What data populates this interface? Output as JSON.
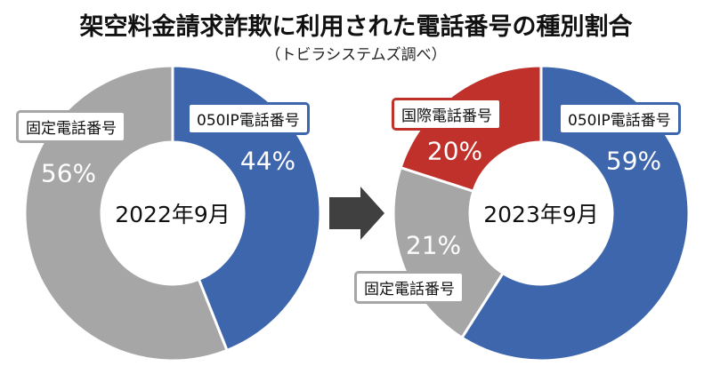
{
  "title": "架空料金請求詐欺に利用された電話番号の種別割合",
  "subtitle": "（トビラシステムズ調べ）",
  "colors": {
    "ip": "#3e66ad",
    "fixed": "#a6a6a6",
    "intl": "#c0312b",
    "arrow": "#404040"
  },
  "chart_data": [
    {
      "type": "pie",
      "title": "2022年9月",
      "slices": [
        {
          "label": "050IP電話番号",
          "value": 44,
          "pct_label": "44%",
          "color": "#3e66ad"
        },
        {
          "label": "固定電話番号",
          "value": 56,
          "pct_label": "56%",
          "color": "#a6a6a6"
        }
      ]
    },
    {
      "type": "pie",
      "title": "2023年9月",
      "slices": [
        {
          "label": "050IP電話番号",
          "value": 59,
          "pct_label": "59%",
          "color": "#3e66ad"
        },
        {
          "label": "固定電話番号",
          "value": 21,
          "pct_label": "21%",
          "color": "#a6a6a6"
        },
        {
          "label": "国際電話番号",
          "value": 20,
          "pct_label": "20%",
          "color": "#c0312b"
        }
      ]
    }
  ]
}
